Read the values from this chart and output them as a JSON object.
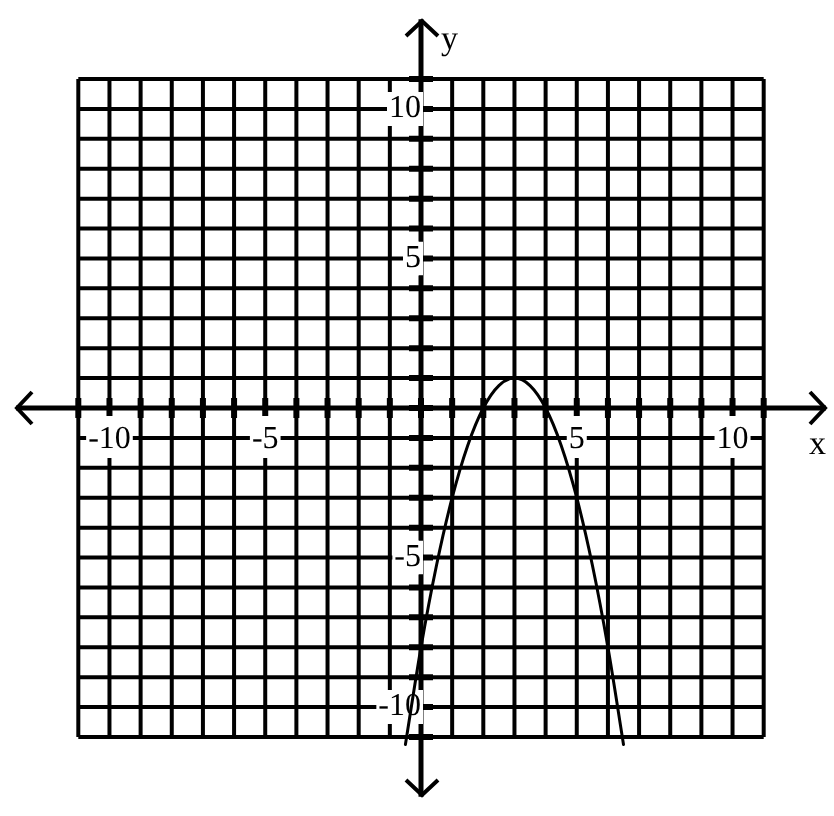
{
  "chart_data": {
    "type": "line",
    "xlabel": "x",
    "ylabel": "y",
    "x": [
      -0.5,
      0,
      0.5,
      1,
      1.5,
      2,
      2.5,
      3,
      3.5,
      4,
      4.5,
      5,
      5.5,
      6,
      6.5
    ],
    "series": [
      {
        "color": "#000000",
        "values": [
          -11.25,
          -8,
          -5.25,
          -3,
          -1.25,
          0,
          0.75,
          1,
          0.75,
          0,
          -1.25,
          -3,
          -5.25,
          -8,
          -11.25
        ]
      }
    ],
    "xlim": [
      -13,
      13
    ],
    "ylim": [
      -13,
      13
    ],
    "xticks": [
      {
        "value": -11,
        "label": null
      },
      -10,
      {
        "value": -9,
        "label": null
      },
      {
        "value": -8,
        "label": null
      },
      {
        "value": -7,
        "label": null
      },
      {
        "value": -6,
        "label": null
      },
      -5,
      {
        "value": -4,
        "label": null
      },
      {
        "value": -3,
        "label": null
      },
      {
        "value": -2,
        "label": null
      },
      {
        "value": -1,
        "label": null
      },
      {
        "value": 0,
        "label": null
      },
      {
        "value": 1,
        "label": null
      },
      {
        "value": 2,
        "label": null
      },
      {
        "value": 3,
        "label": null
      },
      {
        "value": 4,
        "label": null
      },
      5,
      {
        "value": 6,
        "label": null
      },
      {
        "value": 7,
        "label": null
      },
      {
        "value": 8,
        "label": null
      },
      {
        "value": 9,
        "label": null
      },
      10,
      {
        "value": 11,
        "label": null
      }
    ],
    "yticks": [
      {
        "value": -11,
        "label": null
      },
      -10,
      {
        "value": -9,
        "label": null
      },
      {
        "value": -8,
        "label": null
      },
      {
        "value": -7,
        "label": null
      },
      {
        "value": -6,
        "label": null
      },
      -5,
      {
        "value": -4,
        "label": null
      },
      {
        "value": -3,
        "label": null
      },
      {
        "value": -2,
        "label": null
      },
      {
        "value": -1,
        "label": null
      },
      {
        "value": 0,
        "label": null
      },
      {
        "value": 1,
        "label": null
      },
      {
        "value": 2,
        "label": null
      },
      {
        "value": 3,
        "label": null
      },
      {
        "value": 4,
        "label": null
      },
      5,
      {
        "value": 6,
        "label": null
      },
      {
        "value": 7,
        "label": null
      },
      {
        "value": 8,
        "label": null
      },
      {
        "value": 9,
        "label": null
      },
      10,
      {
        "value": 11,
        "label": null
      }
    ],
    "grid": true,
    "marker": "none",
    "line_style": "solid",
    "legend": false
  }
}
